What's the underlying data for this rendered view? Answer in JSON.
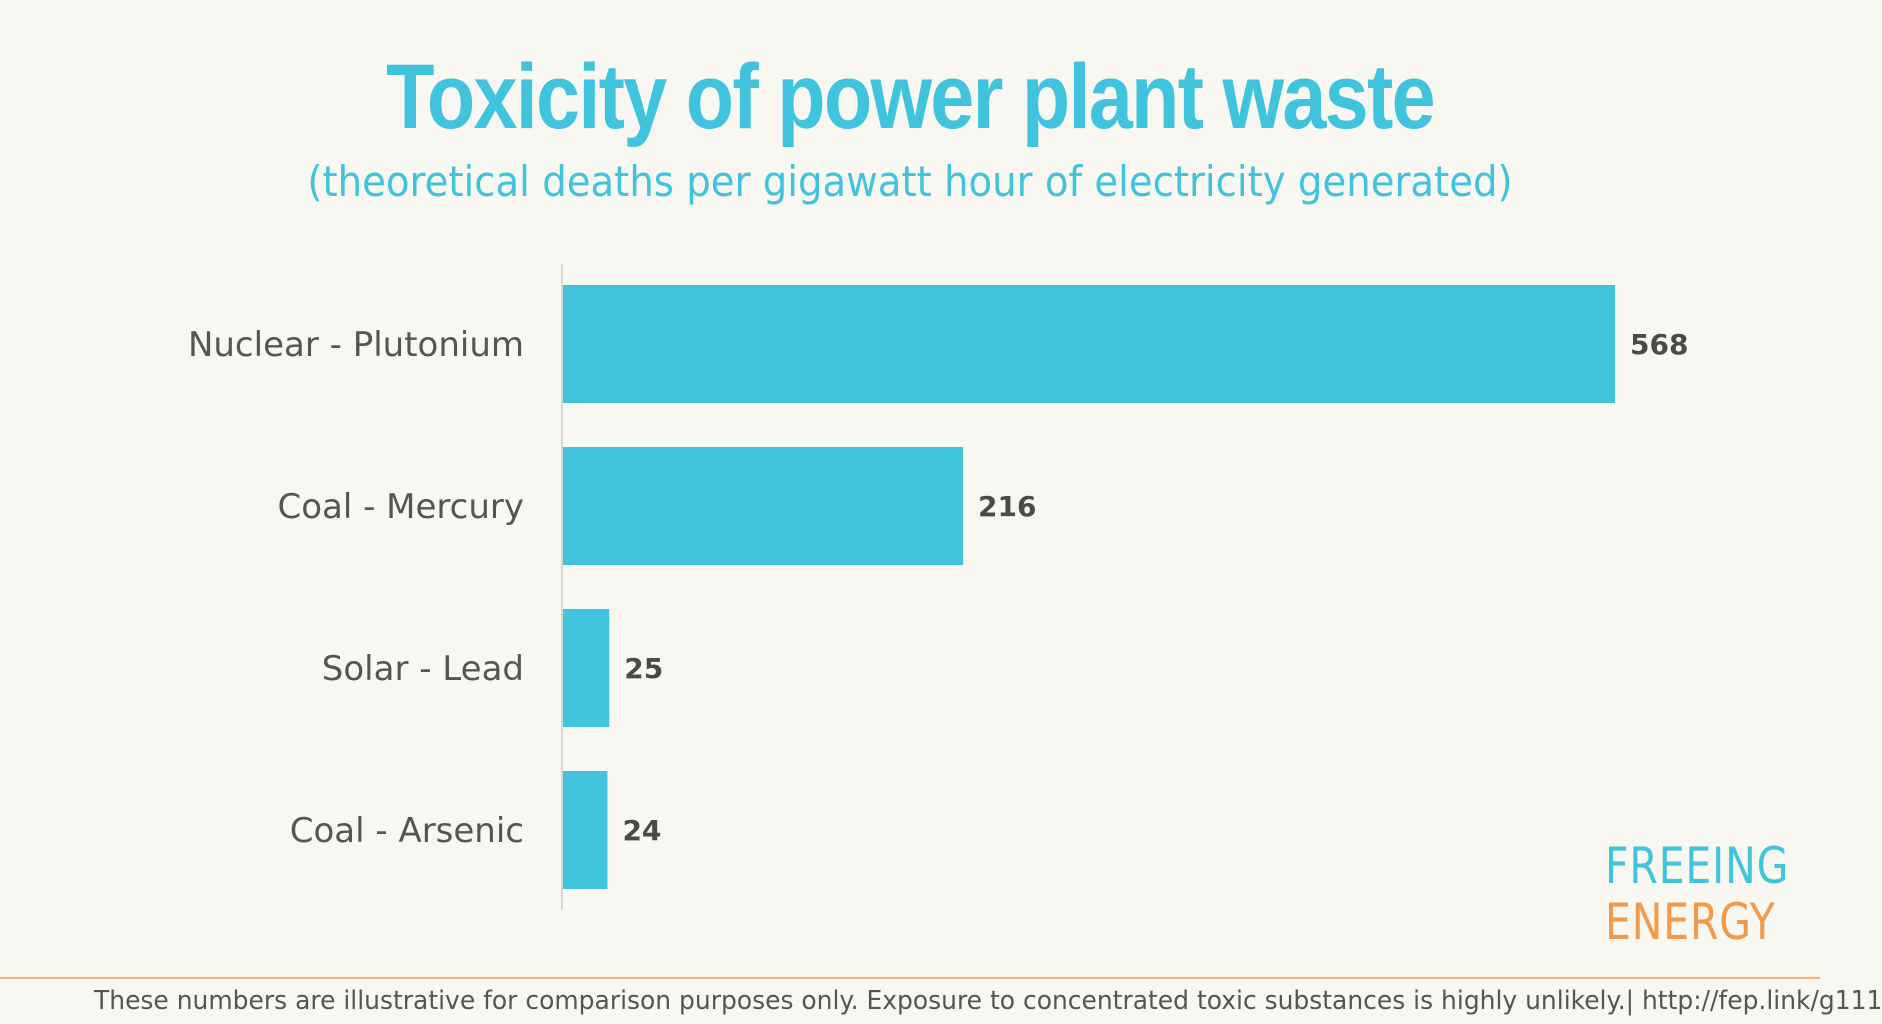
{
  "title": "Toxicity of power plant waste",
  "subtitle": "(theoretical deaths per gigawatt hour of electricity generated)",
  "chart_data": {
    "type": "bar",
    "orientation": "horizontal",
    "categories": [
      "Nuclear - Plutonium",
      "Coal - Mercury",
      "Solar - Lead",
      "Coal - Arsenic"
    ],
    "values": [
      568,
      216,
      25,
      24
    ],
    "data_labels": [
      "568",
      "216",
      "25",
      "24"
    ],
    "xlim": [
      0,
      568
    ],
    "grid": false,
    "legend": "none",
    "bar_color": "#40c3dd"
  },
  "logo": {
    "line1": "FREEING",
    "line2": "ENERGY"
  },
  "footnote": "These numbers are illustrative for comparison purposes only. Exposure to concentrated toxic substances is highly unlikely.| http://fep.link/g111",
  "colors": {
    "accent": "#40c3dd",
    "orange": "#f29a4a",
    "background": "#f8f7f1",
    "text": "#555555"
  }
}
